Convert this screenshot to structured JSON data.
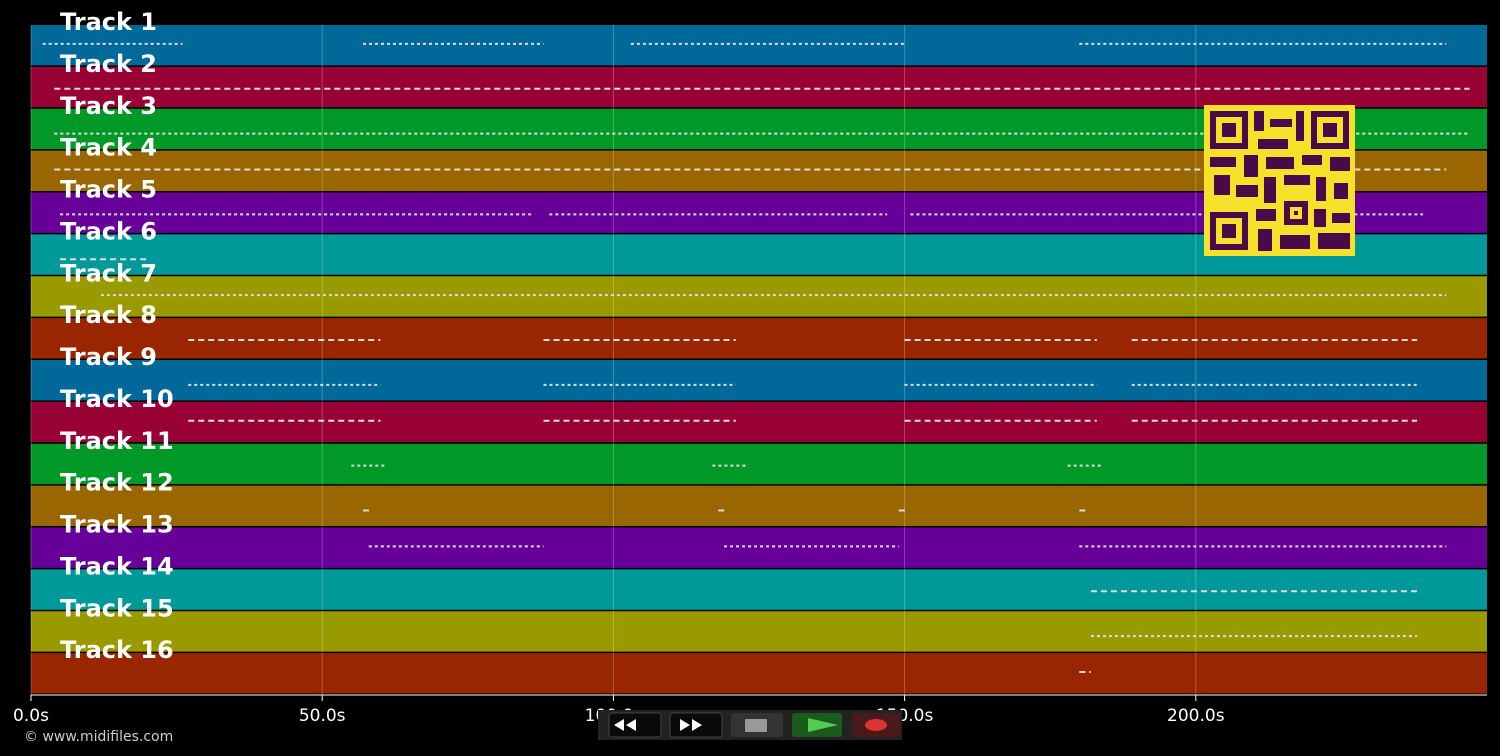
{
  "timeline": {
    "xlim": [
      0,
      250
    ],
    "xticks": [
      {
        "value": 0,
        "label": "0.0s"
      },
      {
        "value": 50,
        "label": "50.0s"
      },
      {
        "value": 100,
        "label": "100.0s"
      },
      {
        "value": 150,
        "label": "150.0s"
      },
      {
        "value": 200,
        "label": "200.0s"
      }
    ]
  },
  "tracks": [
    {
      "name": "Track 1",
      "color": "#00699a",
      "notes": [
        [
          2,
          26
        ],
        [
          57,
          88
        ],
        [
          103,
          150
        ],
        [
          180,
          243
        ]
      ]
    },
    {
      "name": "Track 2",
      "color": "#990033",
      "notes": [
        [
          4,
          247
        ]
      ]
    },
    {
      "name": "Track 3",
      "color": "#009928",
      "notes": [
        [
          4,
          247
        ]
      ]
    },
    {
      "name": "Track 4",
      "color": "#996600",
      "notes": [
        [
          4,
          243
        ]
      ]
    },
    {
      "name": "Track 5",
      "color": "#660099",
      "notes": [
        [
          5,
          86
        ],
        [
          89,
          147
        ],
        [
          151,
          239
        ]
      ]
    },
    {
      "name": "Track 6",
      "color": "#009999",
      "notes": [
        [
          5,
          20
        ]
      ]
    },
    {
      "name": "Track 7",
      "color": "#999900",
      "notes": [
        [
          12,
          243
        ]
      ]
    },
    {
      "name": "Track 8",
      "color": "#992600",
      "notes": [
        [
          27,
          60
        ],
        [
          88,
          121
        ],
        [
          150,
          183
        ],
        [
          189,
          238
        ]
      ]
    },
    {
      "name": "Track 9",
      "color": "#00699a",
      "notes": [
        [
          27,
          60
        ],
        [
          88,
          121
        ],
        [
          150,
          183
        ],
        [
          189,
          238
        ]
      ]
    },
    {
      "name": "Track 10",
      "color": "#990033",
      "notes": [
        [
          27,
          60
        ],
        [
          88,
          121
        ],
        [
          150,
          183
        ],
        [
          189,
          238
        ]
      ]
    },
    {
      "name": "Track 11",
      "color": "#009928",
      "notes": [
        [
          55,
          61
        ],
        [
          117,
          123
        ],
        [
          178,
          184
        ]
      ]
    },
    {
      "name": "Track 12",
      "color": "#996600",
      "notes": [
        [
          57,
          58
        ],
        [
          118,
          119
        ],
        [
          149,
          150
        ],
        [
          180,
          181
        ]
      ]
    },
    {
      "name": "Track 13",
      "color": "#660099",
      "notes": [
        [
          58,
          88
        ],
        [
          119,
          149
        ],
        [
          180,
          243
        ]
      ]
    },
    {
      "name": "Track 14",
      "color": "#009999",
      "notes": [
        [
          182,
          238
        ]
      ]
    },
    {
      "name": "Track 15",
      "color": "#999900",
      "notes": [
        [
          182,
          238
        ]
      ]
    },
    {
      "name": "Track 16",
      "color": "#992600",
      "notes": [
        [
          180,
          182
        ]
      ]
    }
  ],
  "footer": {
    "copyright": "© www.midifiles.com"
  }
}
